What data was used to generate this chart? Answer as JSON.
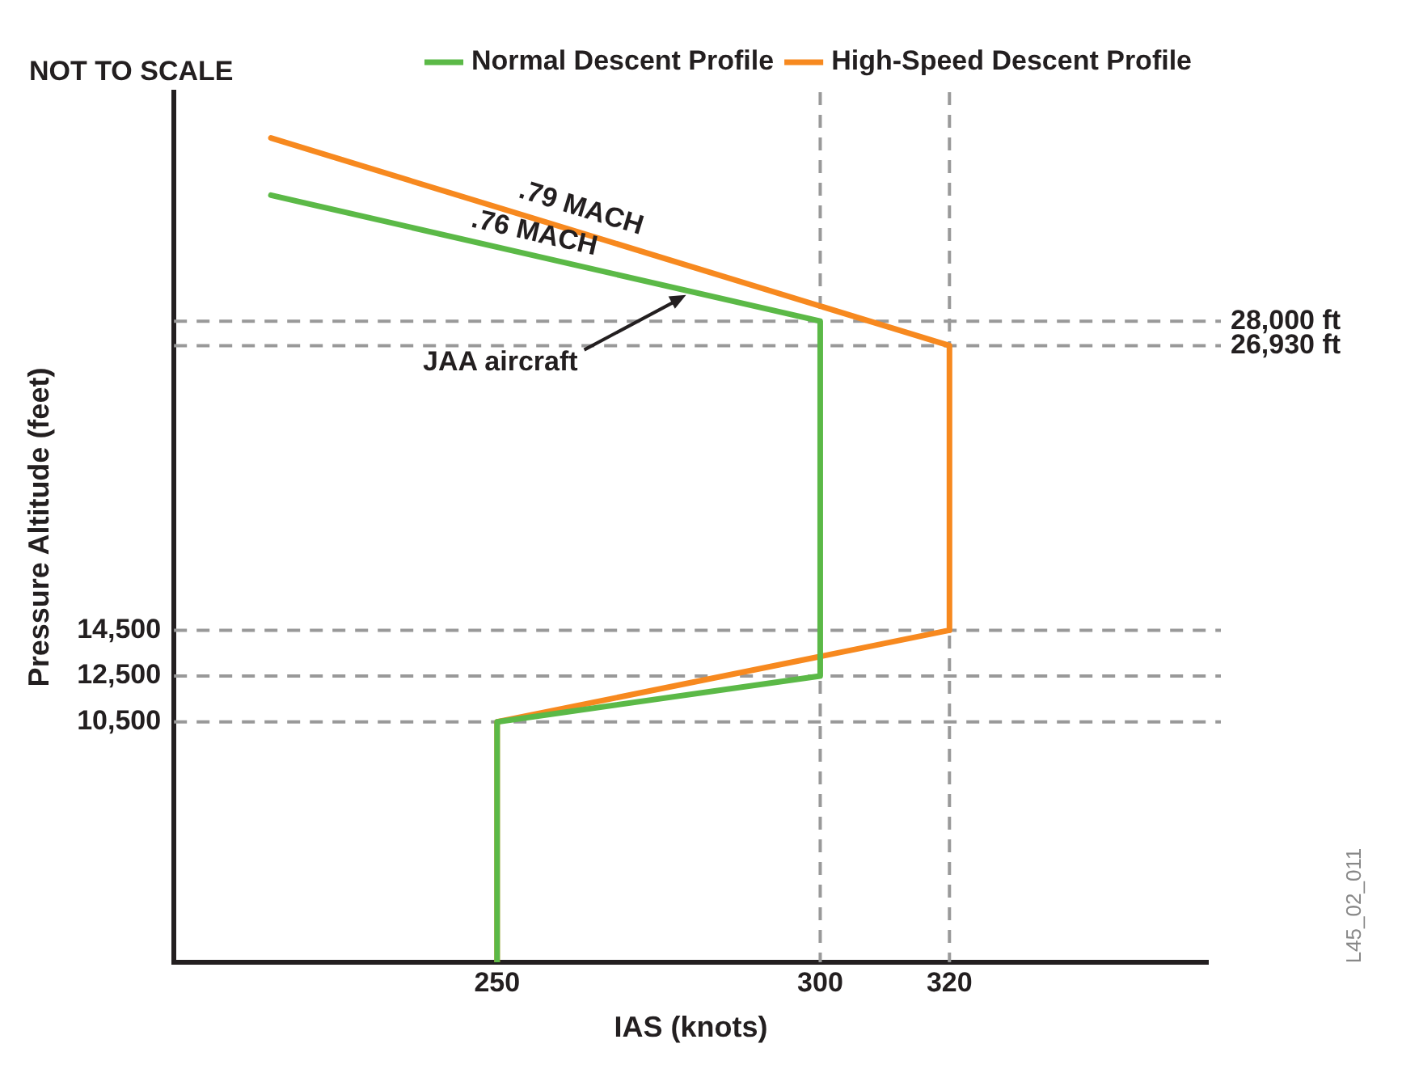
{
  "chart_data": {
    "type": "line",
    "xlabel": "IAS (knots)",
    "ylabel": "Pressure Altitude (feet)",
    "xlim": [
      200,
      360
    ],
    "xticks": [
      250,
      300,
      320
    ],
    "ylim": [
      0,
      38000
    ],
    "yticks": [
      {
        "value": 10500,
        "label": "10,500"
      },
      {
        "value": 12500,
        "label": "12,500"
      },
      {
        "value": 14500,
        "label": "14,500"
      }
    ],
    "grid": false,
    "legend": "top right",
    "marker": "none",
    "line_style": "solid",
    "series": [
      {
        "name": "Normal Descent Profile",
        "color": "#5bb947",
        "x": [
          215,
          300,
          300,
          250,
          250
        ],
        "values": [
          33500,
          28000,
          12500,
          10500,
          0
        ]
      },
      {
        "name": "High-Speed Descent Profile",
        "color": "#f7891f",
        "x": [
          215,
          320,
          320,
          250,
          250
        ],
        "values": [
          36000,
          26930,
          14500,
          10500,
          0
        ]
      }
    ],
    "ref_lines": [
      {
        "axis": "y",
        "value": 28000,
        "label": "28,000 ft",
        "color": "#999999",
        "line_style": "dashed"
      },
      {
        "axis": "y",
        "value": 26930,
        "label": "26,930 ft",
        "color": "#999999",
        "line_style": "dashed"
      },
      {
        "axis": "y",
        "value": 14500,
        "color": "#999999",
        "line_style": "dashed"
      },
      {
        "axis": "y",
        "value": 12500,
        "color": "#999999",
        "line_style": "dashed"
      },
      {
        "axis": "y",
        "value": 10500,
        "color": "#999999",
        "line_style": "dashed"
      },
      {
        "axis": "x",
        "value": 300,
        "color": "#999999",
        "line_style": "dashed"
      },
      {
        "axis": "x",
        "value": 320,
        "color": "#999999",
        "line_style": "dashed"
      }
    ],
    "annotations": [
      "NOT TO SCALE",
      {
        "text": ".79 MACH",
        "x": 262,
        "y": 32000
      },
      {
        "text": ".76 MACH",
        "x": 255,
        "y": 30900
      },
      {
        "text": "JAA aircraft",
        "x": 280,
        "y": 29290
      },
      "L45_02_011"
    ]
  }
}
